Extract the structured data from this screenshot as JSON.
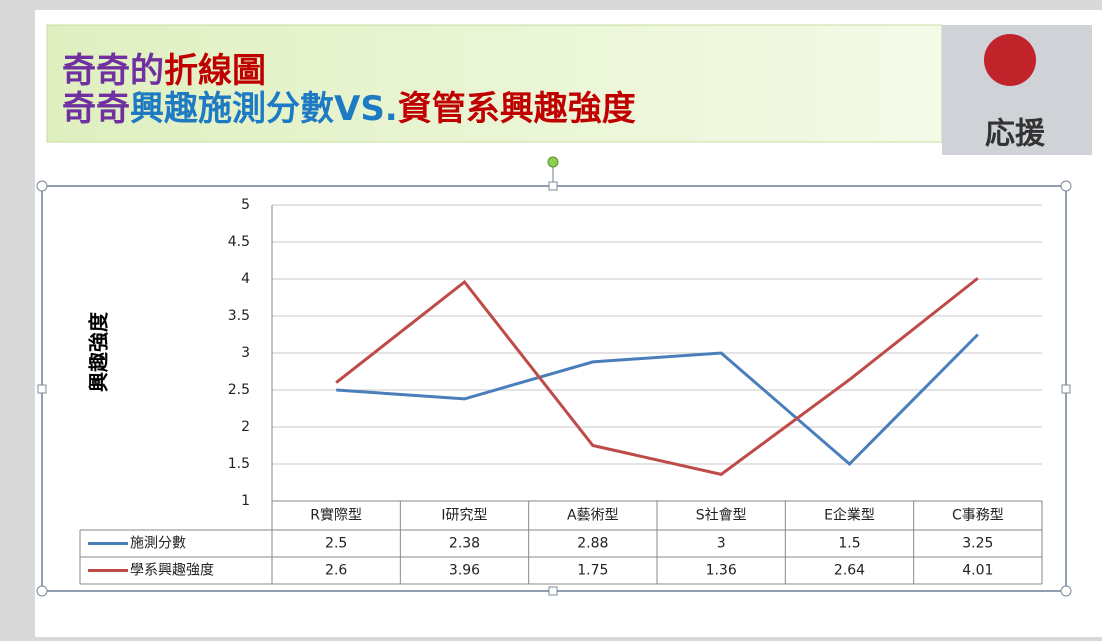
{
  "title": [
    "奇奇的",
    "折線圖"
  ],
  "subtitle": [
    "奇奇",
    "興趣施測分數VS.",
    "資管系興趣強度"
  ],
  "banner_image_text": "応援",
  "chart_data": {
    "type": "line",
    "y_label": "興趣強度",
    "categories": [
      "R實際型",
      "I研究型",
      "A藝術型",
      "S社會型",
      "E企業型",
      "C事務型"
    ],
    "series": [
      {
        "name": "施測分數",
        "color": "#4a7ebb",
        "values": [
          2.5,
          2.38,
          2.88,
          3,
          1.5,
          3.25
        ]
      },
      {
        "name": "學系興趣強度",
        "color": "#be4b48",
        "values": [
          2.6,
          3.96,
          1.75,
          1.36,
          2.64,
          4.01
        ]
      }
    ],
    "ylim": [
      1,
      5
    ],
    "yticks": [
      1,
      1.5,
      2,
      2.5,
      3,
      3.5,
      4,
      4.5,
      5
    ],
    "grid": true
  }
}
